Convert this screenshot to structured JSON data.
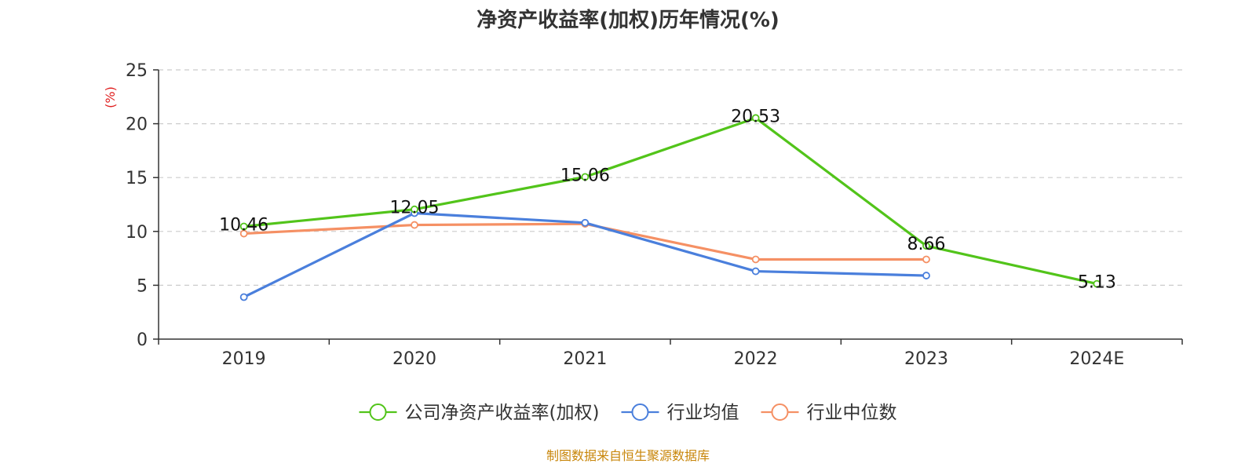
{
  "chart_data": {
    "type": "line",
    "title": "净资产收益率(加权)历年情况(%)",
    "ylabel": "(%)",
    "categories": [
      "2019",
      "2020",
      "2021",
      "2022",
      "2023",
      "2024E"
    ],
    "ylim": [
      0,
      25
    ],
    "yticks": [
      0,
      5,
      10,
      15,
      20,
      25
    ],
    "grid": true,
    "legend_position": "bottom",
    "series": [
      {
        "name": "公司净资产收益率(加权)",
        "color": "#52c41a",
        "values": [
          10.46,
          12.05,
          15.06,
          20.53,
          8.66,
          5.13
        ],
        "labels": [
          "10.46",
          "12.05",
          "15.06",
          "20.53",
          "8.66",
          "5.13"
        ]
      },
      {
        "name": "行业均值",
        "color": "#4a7fdc",
        "values": [
          3.9,
          11.7,
          10.8,
          6.3,
          5.9,
          null
        ]
      },
      {
        "name": "行业中位数",
        "color": "#f59064",
        "values": [
          9.8,
          10.6,
          10.7,
          7.4,
          7.4,
          null
        ]
      }
    ]
  },
  "source": {
    "text": "制图数据来自恒生聚源数据库",
    "color": "#c8860a"
  },
  "ylabel_color": "#e02020"
}
